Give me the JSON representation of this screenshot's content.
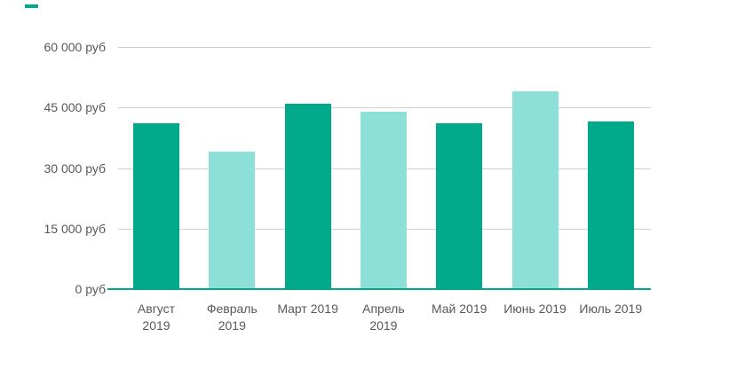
{
  "chart_data": {
    "type": "bar",
    "title": "",
    "xlabel": "",
    "ylabel": "",
    "currency": "руб",
    "categories": [
      "Август 2019",
      "Февраль 2019",
      "Март 2019",
      "Апрель 2019",
      "Май 2019",
      "Июнь 2019",
      "Июль 2019"
    ],
    "x_tick_labels": [
      "Август\n2019",
      "Февраль\n2019",
      "Март 2019",
      "Апрель\n2019",
      "Май 2019",
      "Июнь 2019",
      "Июль 2019"
    ],
    "values": [
      41000,
      34000,
      46000,
      44000,
      41000,
      49000,
      41500
    ],
    "bar_colors": [
      "#00a98a",
      "#8ce0d8",
      "#00a98a",
      "#8ce0d8",
      "#00a98a",
      "#8ce0d8",
      "#00a98a"
    ],
    "ylim": [
      0,
      60000
    ],
    "y_ticks": [
      {
        "value": 0,
        "label": "0 руб"
      },
      {
        "value": 15000,
        "label": "15 000 руб"
      },
      {
        "value": 30000,
        "label": "30 000 руб"
      },
      {
        "value": 45000,
        "label": "45 000 руб"
      },
      {
        "value": 60000,
        "label": "60 000 руб"
      }
    ],
    "grid": true,
    "legend": false,
    "colors": {
      "bar_dark": "#00a98a",
      "bar_light": "#8ce0d8",
      "axis_line": "#00a98a",
      "gridline": "#cfcfcf",
      "tick_text": "#56585a",
      "background": "#ffffff",
      "corner_mark": "#00a98a"
    }
  }
}
